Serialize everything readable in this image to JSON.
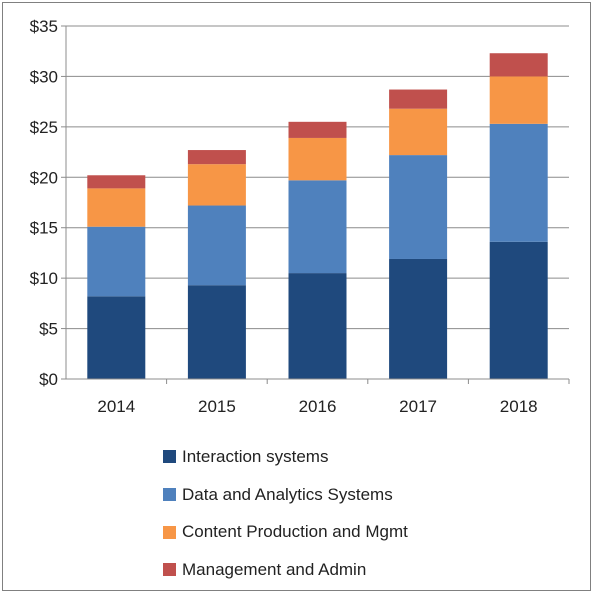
{
  "chart_data": {
    "type": "bar",
    "stacked": true,
    "categories": [
      "2014",
      "2015",
      "2016",
      "2017",
      "2018"
    ],
    "series": [
      {
        "name": "Interaction systems",
        "color": "#1F497D",
        "values": [
          8.2,
          9.3,
          10.5,
          11.9,
          13.6
        ]
      },
      {
        "name": "Data and Analytics Systems",
        "color": "#4F81BD",
        "values": [
          6.9,
          7.9,
          9.2,
          10.3,
          11.7
        ]
      },
      {
        "name": "Content Production and Mgmt",
        "color": "#F79646",
        "values": [
          3.8,
          4.1,
          4.2,
          4.6,
          4.7
        ]
      },
      {
        "name": "Management and Admin",
        "color": "#C0504D",
        "values": [
          1.3,
          1.4,
          1.6,
          1.9,
          2.3
        ]
      }
    ],
    "yticks": [
      "$0",
      "$5",
      "$10",
      "$15",
      "$20",
      "$25",
      "$30",
      "$35"
    ],
    "ylim": [
      0,
      35
    ],
    "grid": true,
    "legend_position": "bottom",
    "title": "",
    "xlabel": "",
    "ylabel": ""
  }
}
